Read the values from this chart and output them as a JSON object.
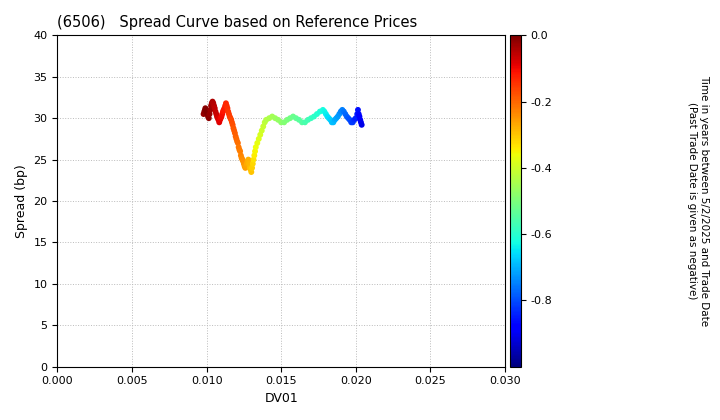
{
  "title": "(6506)   Spread Curve based on Reference Prices",
  "xlabel": "DV01",
  "ylabel": "Spread (bp)",
  "xlim": [
    0.0,
    0.03
  ],
  "ylim": [
    0,
    40
  ],
  "xticks": [
    0.0,
    0.005,
    0.01,
    0.015,
    0.02,
    0.025,
    0.03
  ],
  "yticks": [
    0,
    5,
    10,
    15,
    20,
    25,
    30,
    35,
    40
  ],
  "colorbar_label_line1": "Time in years between 5/2/2025 and Trade Date",
  "colorbar_label_line2": "(Past Trade Date is given as negative)",
  "cbar_vmin": -1.0,
  "cbar_vmax": 0.0,
  "cbar_ticks": [
    0.0,
    -0.2,
    -0.4,
    -0.6,
    -0.8
  ],
  "scatter_data": [
    {
      "dv01": 0.0098,
      "spread": 30.5,
      "time": -0.02
    },
    {
      "dv01": 0.00985,
      "spread": 30.8,
      "time": -0.015
    },
    {
      "dv01": 0.0099,
      "spread": 31.0,
      "time": -0.01
    },
    {
      "dv01": 0.00992,
      "spread": 31.2,
      "time": -0.008
    },
    {
      "dv01": 0.00995,
      "spread": 31.0,
      "time": -0.005
    },
    {
      "dv01": 0.01,
      "spread": 30.8,
      "time": -0.002
    },
    {
      "dv01": 0.01005,
      "spread": 30.5,
      "time": 0.0
    },
    {
      "dv01": 0.0101,
      "spread": 30.2,
      "time": -0.01
    },
    {
      "dv01": 0.01015,
      "spread": 30.0,
      "time": -0.015
    },
    {
      "dv01": 0.0102,
      "spread": 30.5,
      "time": -0.02
    },
    {
      "dv01": 0.01025,
      "spread": 31.0,
      "time": -0.025
    },
    {
      "dv01": 0.0103,
      "spread": 31.5,
      "time": -0.03
    },
    {
      "dv01": 0.01035,
      "spread": 31.8,
      "time": -0.035
    },
    {
      "dv01": 0.0104,
      "spread": 32.0,
      "time": -0.04
    },
    {
      "dv01": 0.01045,
      "spread": 31.8,
      "time": -0.045
    },
    {
      "dv01": 0.0105,
      "spread": 31.5,
      "time": -0.05
    },
    {
      "dv01": 0.01055,
      "spread": 31.2,
      "time": -0.055
    },
    {
      "dv01": 0.0106,
      "spread": 30.8,
      "time": -0.06
    },
    {
      "dv01": 0.01065,
      "spread": 30.5,
      "time": -0.065
    },
    {
      "dv01": 0.0107,
      "spread": 30.2,
      "time": -0.07
    },
    {
      "dv01": 0.01075,
      "spread": 30.0,
      "time": -0.075
    },
    {
      "dv01": 0.0108,
      "spread": 29.8,
      "time": -0.08
    },
    {
      "dv01": 0.01085,
      "spread": 29.5,
      "time": -0.085
    },
    {
      "dv01": 0.0109,
      "spread": 29.8,
      "time": -0.09
    },
    {
      "dv01": 0.01095,
      "spread": 30.0,
      "time": -0.095
    },
    {
      "dv01": 0.011,
      "spread": 30.2,
      "time": -0.1
    },
    {
      "dv01": 0.01105,
      "spread": 30.5,
      "time": -0.105
    },
    {
      "dv01": 0.0111,
      "spread": 30.8,
      "time": -0.11
    },
    {
      "dv01": 0.01115,
      "spread": 31.0,
      "time": -0.115
    },
    {
      "dv01": 0.0112,
      "spread": 31.2,
      "time": -0.12
    },
    {
      "dv01": 0.01125,
      "spread": 31.5,
      "time": -0.125
    },
    {
      "dv01": 0.0113,
      "spread": 31.8,
      "time": -0.13
    },
    {
      "dv01": 0.01135,
      "spread": 31.5,
      "time": -0.135
    },
    {
      "dv01": 0.0114,
      "spread": 31.2,
      "time": -0.14
    },
    {
      "dv01": 0.01145,
      "spread": 30.8,
      "time": -0.145
    },
    {
      "dv01": 0.0115,
      "spread": 30.5,
      "time": -0.15
    },
    {
      "dv01": 0.01155,
      "spread": 30.2,
      "time": -0.155
    },
    {
      "dv01": 0.0116,
      "spread": 30.0,
      "time": -0.16
    },
    {
      "dv01": 0.01165,
      "spread": 29.8,
      "time": -0.165
    },
    {
      "dv01": 0.0117,
      "spread": 29.5,
      "time": -0.17
    },
    {
      "dv01": 0.01175,
      "spread": 29.2,
      "time": -0.175
    },
    {
      "dv01": 0.0118,
      "spread": 28.8,
      "time": -0.18
    },
    {
      "dv01": 0.01185,
      "spread": 28.5,
      "time": -0.185
    },
    {
      "dv01": 0.0119,
      "spread": 28.2,
      "time": -0.19
    },
    {
      "dv01": 0.01195,
      "spread": 27.8,
      "time": -0.195
    },
    {
      "dv01": 0.012,
      "spread": 27.5,
      "time": -0.2
    },
    {
      "dv01": 0.01205,
      "spread": 27.2,
      "time": -0.205
    },
    {
      "dv01": 0.0121,
      "spread": 27.0,
      "time": -0.21
    },
    {
      "dv01": 0.01215,
      "spread": 26.5,
      "time": -0.215
    },
    {
      "dv01": 0.0122,
      "spread": 26.2,
      "time": -0.22
    },
    {
      "dv01": 0.01225,
      "spread": 26.0,
      "time": -0.225
    },
    {
      "dv01": 0.0123,
      "spread": 25.5,
      "time": -0.23
    },
    {
      "dv01": 0.01235,
      "spread": 25.2,
      "time": -0.235
    },
    {
      "dv01": 0.0124,
      "spread": 25.0,
      "time": -0.24
    },
    {
      "dv01": 0.01245,
      "spread": 24.8,
      "time": -0.245
    },
    {
      "dv01": 0.0125,
      "spread": 24.5,
      "time": -0.25
    },
    {
      "dv01": 0.01255,
      "spread": 24.2,
      "time": -0.255
    },
    {
      "dv01": 0.0126,
      "spread": 24.0,
      "time": -0.26
    },
    {
      "dv01": 0.01265,
      "spread": 24.2,
      "time": -0.265
    },
    {
      "dv01": 0.0127,
      "spread": 24.5,
      "time": -0.27
    },
    {
      "dv01": 0.01275,
      "spread": 24.8,
      "time": -0.275
    },
    {
      "dv01": 0.0128,
      "spread": 25.0,
      "time": -0.28
    },
    {
      "dv01": 0.01285,
      "spread": 24.5,
      "time": -0.285
    },
    {
      "dv01": 0.0129,
      "spread": 24.0,
      "time": -0.29
    },
    {
      "dv01": 0.01295,
      "spread": 23.8,
      "time": -0.295
    },
    {
      "dv01": 0.013,
      "spread": 23.5,
      "time": -0.3
    },
    {
      "dv01": 0.01305,
      "spread": 24.0,
      "time": -0.31
    },
    {
      "dv01": 0.0131,
      "spread": 24.5,
      "time": -0.32
    },
    {
      "dv01": 0.01315,
      "spread": 25.0,
      "time": -0.33
    },
    {
      "dv01": 0.0132,
      "spread": 25.5,
      "time": -0.34
    },
    {
      "dv01": 0.01325,
      "spread": 26.0,
      "time": -0.35
    },
    {
      "dv01": 0.0133,
      "spread": 26.5,
      "time": -0.36
    },
    {
      "dv01": 0.0134,
      "spread": 27.0,
      "time": -0.37
    },
    {
      "dv01": 0.0135,
      "spread": 27.5,
      "time": -0.38
    },
    {
      "dv01": 0.0136,
      "spread": 28.0,
      "time": -0.39
    },
    {
      "dv01": 0.0137,
      "spread": 28.5,
      "time": -0.4
    },
    {
      "dv01": 0.0138,
      "spread": 29.0,
      "time": -0.41
    },
    {
      "dv01": 0.0139,
      "spread": 29.5,
      "time": -0.42
    },
    {
      "dv01": 0.014,
      "spread": 29.8,
      "time": -0.43
    },
    {
      "dv01": 0.0142,
      "spread": 30.0,
      "time": -0.44
    },
    {
      "dv01": 0.0144,
      "spread": 30.2,
      "time": -0.45
    },
    {
      "dv01": 0.0146,
      "spread": 30.0,
      "time": -0.46
    },
    {
      "dv01": 0.0148,
      "spread": 29.8,
      "time": -0.47
    },
    {
      "dv01": 0.015,
      "spread": 29.5,
      "time": -0.48
    },
    {
      "dv01": 0.0152,
      "spread": 29.5,
      "time": -0.49
    },
    {
      "dv01": 0.0154,
      "spread": 29.8,
      "time": -0.5
    },
    {
      "dv01": 0.0156,
      "spread": 30.0,
      "time": -0.51
    },
    {
      "dv01": 0.0158,
      "spread": 30.2,
      "time": -0.52
    },
    {
      "dv01": 0.016,
      "spread": 30.0,
      "time": -0.53
    },
    {
      "dv01": 0.0162,
      "spread": 29.8,
      "time": -0.54
    },
    {
      "dv01": 0.0164,
      "spread": 29.5,
      "time": -0.55
    },
    {
      "dv01": 0.0166,
      "spread": 29.5,
      "time": -0.56
    },
    {
      "dv01": 0.0168,
      "spread": 29.8,
      "time": -0.57
    },
    {
      "dv01": 0.017,
      "spread": 30.0,
      "time": -0.58
    },
    {
      "dv01": 0.0172,
      "spread": 30.2,
      "time": -0.59
    },
    {
      "dv01": 0.0174,
      "spread": 30.5,
      "time": -0.6
    },
    {
      "dv01": 0.0176,
      "spread": 30.8,
      "time": -0.61
    },
    {
      "dv01": 0.0178,
      "spread": 31.0,
      "time": -0.62
    },
    {
      "dv01": 0.0179,
      "spread": 30.8,
      "time": -0.63
    },
    {
      "dv01": 0.018,
      "spread": 30.5,
      "time": -0.64
    },
    {
      "dv01": 0.0181,
      "spread": 30.2,
      "time": -0.65
    },
    {
      "dv01": 0.0182,
      "spread": 30.0,
      "time": -0.66
    },
    {
      "dv01": 0.0183,
      "spread": 29.8,
      "time": -0.67
    },
    {
      "dv01": 0.0184,
      "spread": 29.5,
      "time": -0.68
    },
    {
      "dv01": 0.0185,
      "spread": 29.5,
      "time": -0.69
    },
    {
      "dv01": 0.0186,
      "spread": 29.8,
      "time": -0.7
    },
    {
      "dv01": 0.0187,
      "spread": 30.0,
      "time": -0.71
    },
    {
      "dv01": 0.0188,
      "spread": 30.2,
      "time": -0.72
    },
    {
      "dv01": 0.0189,
      "spread": 30.5,
      "time": -0.73
    },
    {
      "dv01": 0.019,
      "spread": 30.8,
      "time": -0.74
    },
    {
      "dv01": 0.0191,
      "spread": 31.0,
      "time": -0.75
    },
    {
      "dv01": 0.0192,
      "spread": 30.8,
      "time": -0.76
    },
    {
      "dv01": 0.0193,
      "spread": 30.5,
      "time": -0.77
    },
    {
      "dv01": 0.0194,
      "spread": 30.2,
      "time": -0.78
    },
    {
      "dv01": 0.0195,
      "spread": 30.0,
      "time": -0.79
    },
    {
      "dv01": 0.0196,
      "spread": 29.8,
      "time": -0.8
    },
    {
      "dv01": 0.0197,
      "spread": 29.5,
      "time": -0.81
    },
    {
      "dv01": 0.0198,
      "spread": 29.5,
      "time": -0.82
    },
    {
      "dv01": 0.0199,
      "spread": 29.8,
      "time": -0.83
    },
    {
      "dv01": 0.02,
      "spread": 30.0,
      "time": -0.84
    },
    {
      "dv01": 0.0201,
      "spread": 30.5,
      "time": -0.85
    },
    {
      "dv01": 0.02015,
      "spread": 31.0,
      "time": -0.86
    },
    {
      "dv01": 0.0202,
      "spread": 30.5,
      "time": -0.87
    },
    {
      "dv01": 0.02025,
      "spread": 30.2,
      "time": -0.88
    },
    {
      "dv01": 0.0203,
      "spread": 29.8,
      "time": -0.89
    },
    {
      "dv01": 0.02035,
      "spread": 29.5,
      "time": -0.9
    },
    {
      "dv01": 0.0204,
      "spread": 29.2,
      "time": -0.91
    }
  ],
  "background_color": "#ffffff",
  "grid_color": "#bbbbbb",
  "marker_size": 18,
  "colormap": "jet"
}
